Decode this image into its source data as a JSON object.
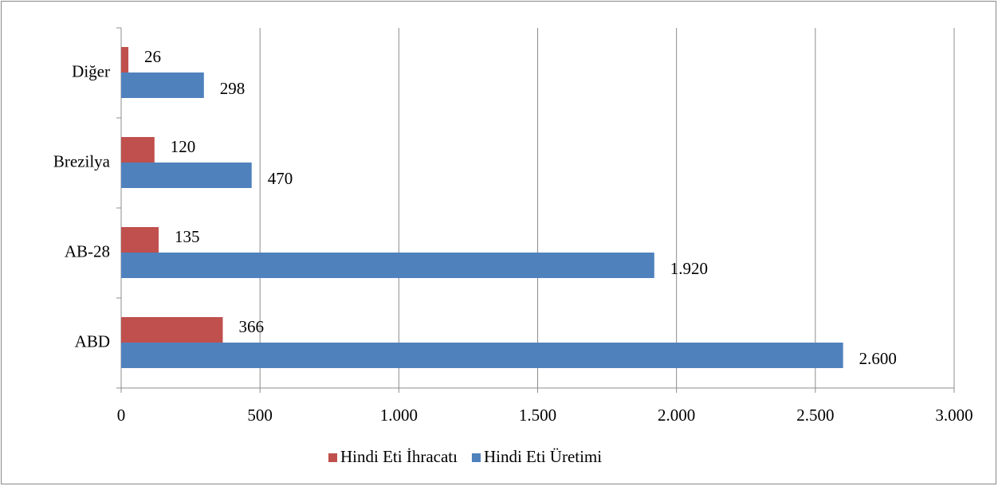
{
  "chart_data": {
    "type": "hbar",
    "categories": [
      "ABD",
      "AB-28",
      "Brezilya",
      "Diğer"
    ],
    "series": [
      {
        "name": "Hindi Eti İhracatı",
        "color": "#c0504d",
        "values": [
          366,
          135,
          120,
          26
        ]
      },
      {
        "name": "Hindi Eti Üretimi",
        "color": "#4f81bd",
        "values": [
          2600,
          1920,
          470,
          298
        ],
        "value_labels": [
          "2.600",
          "1.920",
          "470",
          "298"
        ]
      }
    ],
    "xlim": [
      0,
      3000
    ],
    "xticks": [
      0,
      500,
      {
        "value": 1000,
        "label": "1.000"
      },
      {
        "value": 1500,
        "label": "1.500"
      },
      {
        "value": 2000,
        "label": "2.000"
      },
      {
        "value": 2500,
        "label": "2.500"
      },
      {
        "value": 3000,
        "label": "3.000"
      }
    ],
    "grid": true,
    "legend": "bottom"
  }
}
